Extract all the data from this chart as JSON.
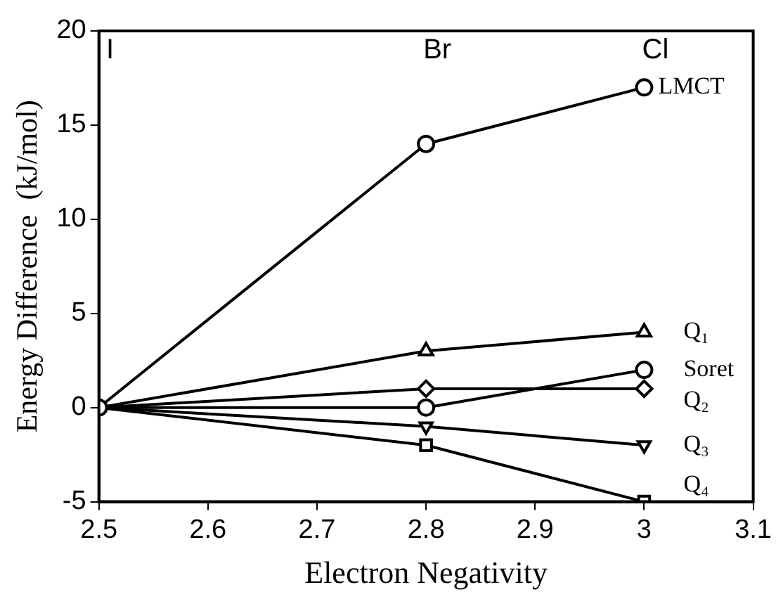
{
  "chart_data": {
    "type": "line",
    "xlabel": "Electron Negativity",
    "ylabel": "Energy Difference  (kJ/mol)",
    "xlim": [
      2.5,
      3.1
    ],
    "xticks": [
      2.5,
      2.6,
      2.7,
      2.8,
      2.9,
      3,
      3.1
    ],
    "ylim": [
      -5,
      20
    ],
    "yticks": [
      -5,
      0,
      5,
      10,
      15,
      20
    ],
    "grid": false,
    "legend": false,
    "line_style": "solid",
    "series": [
      {
        "name": "LMCT",
        "color": "#000000",
        "x": [
          2.5,
          2.8,
          3
        ],
        "values": [
          0,
          14,
          17
        ],
        "marker": "circle"
      },
      {
        "name": "Q₁",
        "color": "#000000",
        "x": [
          2.5,
          2.8,
          3
        ],
        "values": [
          0,
          3,
          4
        ],
        "marker": "triangle"
      },
      {
        "name": "Soret",
        "color": "#000000",
        "x": [
          2.5,
          2.8,
          3
        ],
        "values": [
          0,
          0,
          2
        ],
        "marker": "circle"
      },
      {
        "name": "Q₂",
        "color": "#000000",
        "x": [
          2.5,
          2.8,
          3
        ],
        "values": [
          0,
          1,
          1
        ],
        "marker": "diamond"
      },
      {
        "name": "Q₃",
        "color": "#000000",
        "x": [
          2.5,
          2.8,
          3
        ],
        "values": [
          0,
          -1,
          -2
        ],
        "marker": "triangle"
      },
      {
        "name": "Q₄",
        "color": "#000000",
        "x": [
          2.5,
          2.8,
          3
        ],
        "values": [
          0,
          -2,
          -5
        ],
        "marker": "square"
      }
    ],
    "annotations": [
      "I",
      "Br",
      "Cl"
    ]
  }
}
